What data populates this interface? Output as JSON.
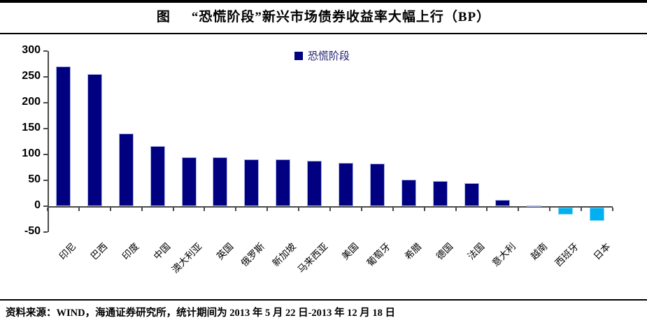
{
  "title": {
    "prefix": "图",
    "text": "“恐慌阶段”新兴市场债券收益率大幅上行（BP）"
  },
  "legend": {
    "label": "恐慌阶段",
    "swatch_color": "#000080"
  },
  "footer": {
    "text": "资料来源：WIND，海通证券研究所，统计期间为 2013 年 5 月 22 日-2013 年 12 月 18 日"
  },
  "colors": {
    "positive_bar": "#000080",
    "negative_bar": "#00B0F0",
    "axis": "#4a4a4a"
  },
  "chart_data": {
    "type": "bar",
    "title": "图 “恐慌阶段”新兴市场债券收益率大幅上行（BP）",
    "categories": [
      "印尼",
      "巴西",
      "印度",
      "中国",
      "澳大利亚",
      "英国",
      "俄罗斯",
      "新加坡",
      "马来西亚",
      "美国",
      "葡萄牙",
      "希腊",
      "德国",
      "法国",
      "意大利",
      "越南",
      "西班牙",
      "日本"
    ],
    "values": [
      270,
      255,
      140,
      116,
      95,
      95,
      91,
      90,
      88,
      84,
      82,
      52,
      48,
      44,
      12,
      2,
      -13,
      -25
    ],
    "series_name": "恐慌阶段",
    "xlabel": "",
    "ylabel": "",
    "unit": "BP",
    "ylim": [
      -50,
      300
    ],
    "yticks": [
      300,
      250,
      200,
      150,
      100,
      50,
      0,
      -50
    ],
    "grid": false,
    "legend_position": "top-center",
    "positive_color": "#000080",
    "negative_color": "#00B0F0"
  }
}
